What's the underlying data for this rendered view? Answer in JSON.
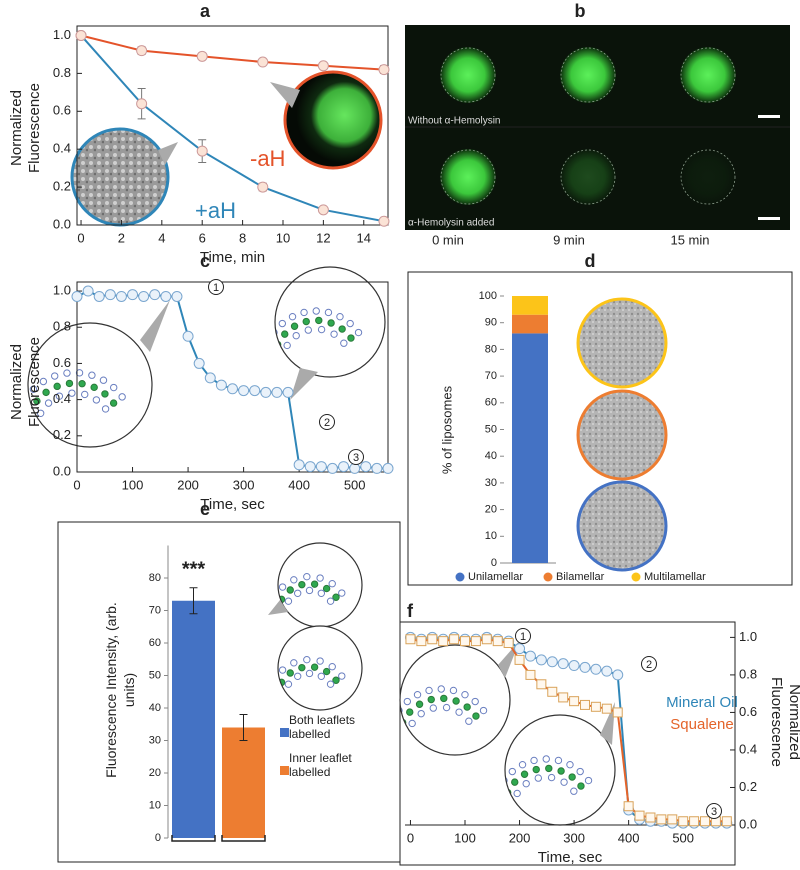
{
  "panels": [
    "a",
    "b",
    "c",
    "d",
    "e",
    "f"
  ],
  "micrographs": {
    "row_labels": [
      "Without α-Hemolysin",
      "α-Hemolysin added"
    ],
    "time_labels": [
      "0 min",
      "9 min",
      "15 min"
    ]
  },
  "chart_data": [
    {
      "type": "line",
      "xlabel": "Time, min",
      "ylabel": "Normalized Fluorescence",
      "x": [
        0,
        3,
        6,
        9,
        12,
        15
      ],
      "xlim": [
        -0.2,
        15.2
      ],
      "ylim": [
        0,
        1.05
      ],
      "xticks": [
        0,
        2,
        4,
        6,
        8,
        10,
        12,
        14
      ],
      "yticks": [
        {
          "value": 0,
          "label": "0.0"
        },
        0.2,
        0.4,
        0.6,
        0.8,
        {
          "value": 1,
          "label": "1.0"
        }
      ],
      "series": [
        {
          "name": "-aH",
          "color": "#e4532a",
          "marker": "circle",
          "values": [
            1.0,
            0.92,
            0.89,
            0.86,
            0.84,
            0.82
          ],
          "errors": [
            0.01,
            0.02,
            0.01,
            0.01,
            0.01,
            0.02
          ]
        },
        {
          "name": "+aH",
          "color": "#2f86b8",
          "marker": "circle",
          "values": [
            1.0,
            0.64,
            0.39,
            0.2,
            0.08,
            0.02
          ],
          "errors": [
            0.01,
            0.08,
            0.06,
            0.02,
            0.01,
            0.01
          ]
        }
      ]
    },
    {
      "type": "line",
      "xlabel": "Time, sec",
      "ylabel": "Normalized Fluorescence",
      "x": [
        0,
        20,
        40,
        60,
        80,
        100,
        120,
        140,
        160,
        180,
        200,
        220,
        240,
        260,
        280,
        300,
        320,
        340,
        360,
        380,
        400,
        420,
        440,
        460,
        480,
        500,
        520,
        540,
        560
      ],
      "xlim": [
        0,
        560
      ],
      "ylim": [
        0,
        1.05
      ],
      "xticks": [
        0,
        100,
        200,
        300,
        400,
        500
      ],
      "yticks": [
        {
          "value": 0,
          "label": "0.0"
        },
        0.2,
        0.4,
        0.6,
        0.8,
        {
          "value": 1,
          "label": "1.0"
        }
      ],
      "annotations": [
        "1",
        "2",
        "3"
      ],
      "series": [
        {
          "color": "#2f86b8",
          "marker": "circle",
          "values": [
            0.97,
            1.0,
            0.97,
            0.98,
            0.97,
            0.98,
            0.97,
            0.98,
            0.97,
            0.97,
            0.75,
            0.6,
            0.52,
            0.48,
            0.46,
            0.45,
            0.45,
            0.44,
            0.44,
            0.44,
            0.04,
            0.03,
            0.03,
            0.02,
            0.03,
            0.02,
            0.03,
            0.02,
            0.02
          ]
        }
      ]
    },
    {
      "type": "stacked_bar",
      "ylabel": "% of liposomes",
      "ylim": [
        0,
        100
      ],
      "yticks": [
        0,
        10,
        20,
        30,
        40,
        50,
        60,
        70,
        80,
        90,
        100
      ],
      "series": [
        {
          "name": "Unilamellar",
          "color": "#4472c4",
          "values": [
            86
          ]
        },
        {
          "name": "Bilamellar",
          "color": "#ed7d31",
          "values": [
            7
          ]
        },
        {
          "name": "Multilamellar",
          "color": "#fcc419",
          "values": [
            7
          ]
        }
      ]
    },
    {
      "type": "bar",
      "ylabel": "Fluorescence Intensity, (arb. units)",
      "categories": [
        "Both leaflets labelled",
        "Inner leaflet labelled"
      ],
      "colors": [
        "#4472c4",
        "#ed7d31"
      ],
      "values": [
        73,
        34
      ],
      "errors": [
        4,
        4
      ],
      "ylim": [
        0,
        90
      ],
      "yticks": [
        0,
        10,
        20,
        30,
        40,
        50,
        60,
        70,
        80
      ],
      "annotation": "***"
    },
    {
      "type": "line",
      "xlabel": "Time, sec",
      "y2label": "Normalized Fluorescence",
      "x": [
        0,
        20,
        40,
        60,
        80,
        100,
        120,
        140,
        160,
        180,
        200,
        220,
        240,
        260,
        280,
        300,
        320,
        340,
        360,
        380,
        400,
        420,
        440,
        460,
        480,
        500,
        520,
        540,
        560,
        580
      ],
      "xlim": [
        -10,
        595
      ],
      "y2lim": [
        0,
        1.05
      ],
      "xticks": [
        0,
        100,
        200,
        300,
        400,
        500
      ],
      "y2ticks": [
        {
          "value": 0,
          "label": "0.0"
        },
        0.2,
        0.4,
        0.6,
        0.8,
        {
          "value": 1,
          "label": "1.0"
        }
      ],
      "annotations": [
        "1",
        "2",
        "3"
      ],
      "series": [
        {
          "name": "Mineral Oil",
          "color": "#2f86b8",
          "marker": "circle",
          "axis": "y2",
          "values": [
            1.0,
            0.99,
            1.0,
            0.99,
            1.0,
            0.99,
            0.99,
            1.0,
            0.99,
            0.98,
            0.94,
            0.9,
            0.88,
            0.87,
            0.86,
            0.85,
            0.84,
            0.83,
            0.82,
            0.8,
            0.08,
            0.03,
            0.02,
            0.02,
            0.01,
            0.01,
            0.01,
            0.01,
            0.01,
            0.01
          ]
        },
        {
          "name": "Squalene",
          "color": "#e4642a",
          "marker": "square",
          "axis": "y2",
          "values": [
            0.99,
            0.98,
            0.99,
            0.98,
            0.99,
            0.98,
            0.98,
            0.99,
            0.98,
            0.97,
            0.88,
            0.8,
            0.75,
            0.71,
            0.68,
            0.66,
            0.64,
            0.63,
            0.62,
            0.6,
            0.1,
            0.05,
            0.04,
            0.03,
            0.03,
            0.02,
            0.02,
            0.02,
            0.02,
            0.02
          ]
        }
      ]
    }
  ]
}
